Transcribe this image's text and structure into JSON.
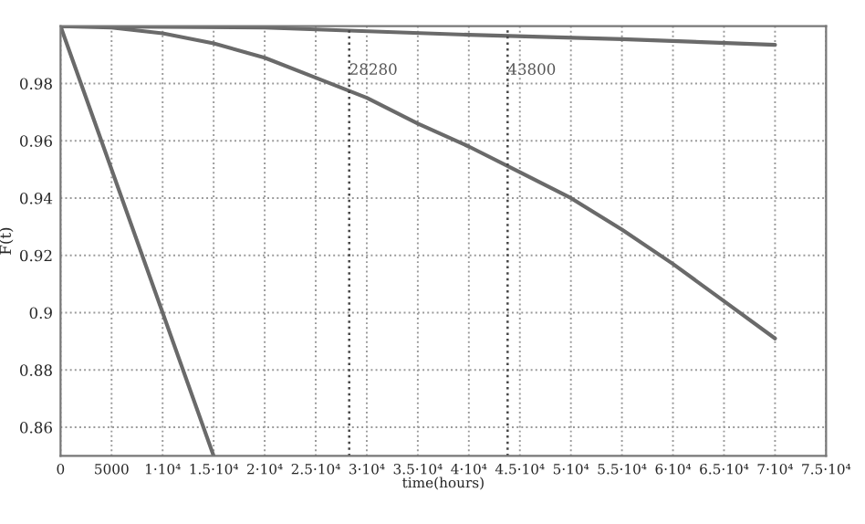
{
  "chart_data": {
    "type": "line",
    "xlabel": "time(hours)",
    "ylabel": "F(t)",
    "xlim": [
      0,
      75000
    ],
    "ylim": [
      0.85,
      1.0
    ],
    "xticks": [
      0,
      5000,
      {
        "value": 10000,
        "label": "1·10⁴"
      },
      {
        "value": 15000,
        "label": "1.5·10⁴"
      },
      {
        "value": 20000,
        "label": "2·10⁴"
      },
      {
        "value": 25000,
        "label": "2.5·10⁴"
      },
      {
        "value": 30000,
        "label": "3·10⁴"
      },
      {
        "value": 35000,
        "label": "3.5·10⁴"
      },
      {
        "value": 40000,
        "label": "4·10⁴"
      },
      {
        "value": 45000,
        "label": "4.5·10⁴"
      },
      {
        "value": 50000,
        "label": "5·10⁴"
      },
      {
        "value": 55000,
        "label": "5.5·10⁴"
      },
      {
        "value": 60000,
        "label": "6·10⁴"
      },
      {
        "value": 65000,
        "label": "6.5·10⁴"
      },
      {
        "value": 70000,
        "label": "7·10⁴"
      },
      {
        "value": 75000,
        "label": "7.5·10⁴"
      }
    ],
    "yticks": [
      0.86,
      0.88,
      0.9,
      0.92,
      0.94,
      0.96,
      0.98
    ],
    "grid": true,
    "line_style": "solid",
    "series": [
      {
        "color": "#6a6a6a",
        "x": [
          0,
          15000
        ],
        "values": [
          1.0,
          0.85
        ]
      },
      {
        "color": "#6a6a6a",
        "x": [
          0,
          5000,
          10000,
          15000,
          20000,
          25000,
          30000,
          35000,
          40000,
          45000,
          50000,
          55000,
          60000,
          65000,
          70000
        ],
        "values": [
          1.0,
          0.9995,
          0.9975,
          0.994,
          0.989,
          0.982,
          0.975,
          0.966,
          0.958,
          0.949,
          0.94,
          0.929,
          0.917,
          0.904,
          0.891
        ]
      },
      {
        "color": "#6a6a6a",
        "x": [
          0,
          20000,
          40000,
          55000,
          70000
        ],
        "values": [
          1.0,
          0.9995,
          0.997,
          0.9955,
          0.9935
        ]
      }
    ],
    "ref_lines": [
      {
        "axis": "x",
        "value": 28280,
        "label": "28280",
        "color": "#444444",
        "line_style": "dotted"
      },
      {
        "axis": "x",
        "value": 43800,
        "label": "43800",
        "color": "#444444",
        "line_style": "dotted"
      }
    ]
  }
}
